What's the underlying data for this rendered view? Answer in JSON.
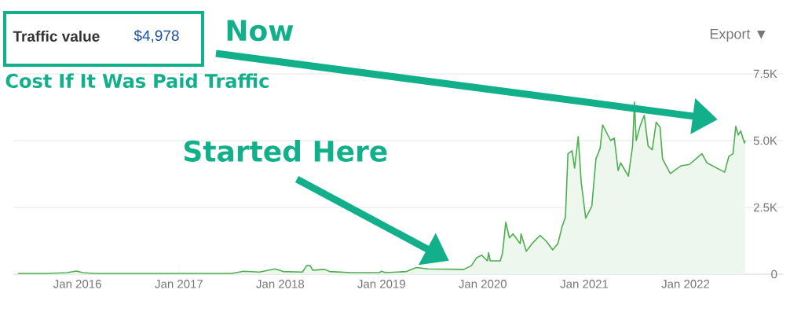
{
  "chart_data": {
    "type": "area",
    "title": "Traffic value",
    "subtitle": "$4,978",
    "annotations": [
      "Cost If It Was Paid Traffic",
      "Now",
      "Started Here",
      "Export ▼"
    ],
    "x": [
      "2015-06-01",
      "2015-09-15",
      "2015-11-25",
      "2015-12-28",
      "2016-01-20",
      "2016-03-02",
      "2017-07-10",
      "2017-08-22",
      "2017-10-18",
      "2017-12-13",
      "2018-01-12",
      "2018-03-22",
      "2018-04-06",
      "2018-04-19",
      "2018-04-28",
      "2018-06-10",
      "2018-06-28",
      "2018-09-15",
      "2018-12-25",
      "2019-01-01",
      "2019-01-15",
      "2019-04-01",
      "2019-05-06",
      "2019-06-18",
      "2019-10-25",
      "2019-11-21",
      "2019-12-10",
      "2019-12-28",
      "2020-01-18",
      "2020-01-22",
      "2020-01-28",
      "2020-03-04",
      "2020-03-12",
      "2020-03-24",
      "2020-04-06",
      "2020-04-19",
      "2020-05-15",
      "2020-05-18",
      "2020-06-06",
      "2020-06-27",
      "2020-07-25",
      "2020-08-16",
      "2020-09-09",
      "2020-09-28",
      "2020-10-12",
      "2020-10-25",
      "2020-11-03",
      "2020-11-18",
      "2020-11-27",
      "2020-12-10",
      "2020-12-21",
      "2021-01-06",
      "2021-01-28",
      "2021-02-12",
      "2021-02-27",
      "2021-03-08",
      "2021-04-06",
      "2021-04-19",
      "2021-05-03",
      "2021-05-12",
      "2021-06-09",
      "2021-06-24",
      "2021-07-01",
      "2021-07-07",
      "2021-07-21",
      "2021-08-05",
      "2021-08-19",
      "2021-09-03",
      "2021-09-17",
      "2021-10-01",
      "2021-10-10",
      "2021-11-07",
      "2021-12-16",
      "2022-01-15",
      "2022-02-01",
      "2022-03-01",
      "2022-03-19",
      "2022-05-22",
      "2022-06-06",
      "2022-06-21",
      "2022-07-01",
      "2022-07-10",
      "2022-07-19",
      "2022-08-01",
      "2022-08-04"
    ],
    "series": [
      {
        "color": "#4caf50",
        "values": [
          30,
          30,
          60,
          120,
          60,
          30,
          30,
          110,
          80,
          200,
          100,
          80,
          320,
          320,
          150,
          180,
          100,
          60,
          60,
          110,
          60,
          100,
          250,
          200,
          180,
          320,
          620,
          710,
          500,
          810,
          500,
          500,
          770,
          1950,
          1360,
          1510,
          1150,
          1510,
          860,
          1150,
          1450,
          1250,
          910,
          1150,
          1750,
          2140,
          4510,
          4620,
          3970,
          5150,
          3430,
          2100,
          2540,
          4320,
          4710,
          5590,
          5000,
          5100,
          3880,
          4170,
          3670,
          4800,
          6450,
          5000,
          5540,
          5950,
          4800,
          4660,
          5690,
          5510,
          4320,
          3770,
          4060,
          4110,
          4260,
          4510,
          4170,
          3820,
          4410,
          4510,
          5540,
          5210,
          5360,
          4910,
          5000
        ]
      }
    ],
    "xlim": [
      "2015-05-15",
      "2022-12-18"
    ],
    "xticks": [
      {
        "value": "2016-01",
        "label": "Jan 2016"
      },
      {
        "value": "2017-01",
        "label": "Jan 2017"
      },
      {
        "value": "2018-01",
        "label": "Jan 2018"
      },
      {
        "value": "2019-01",
        "label": "Jan 2019"
      },
      {
        "value": "2020-01",
        "label": "Jan 2020"
      },
      {
        "value": "2021-01",
        "label": "Jan 2021"
      },
      {
        "value": "2022-01",
        "label": "Jan 2022"
      }
    ],
    "ylim": [
      0,
      7500
    ],
    "yticks": [
      {
        "value": 0,
        "label": "0"
      },
      {
        "value": 2500,
        "label": "2.5K"
      },
      {
        "value": 5000,
        "label": "5.0K"
      },
      {
        "value": 7500,
        "label": "7.5K"
      }
    ],
    "grid": "y"
  }
}
